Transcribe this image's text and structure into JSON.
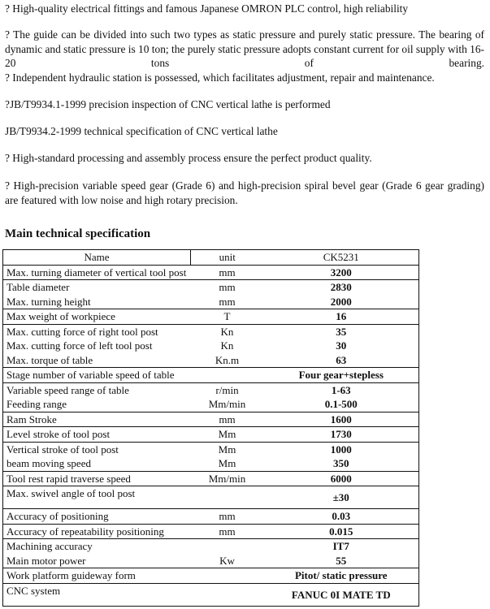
{
  "paragraphs": [
    "? High-quality electrical fittings and famous Japanese OMRON PLC control, high reliability",
    "? The guide can be divided into such two types as static pressure and purely static pressure. The bearing of dynamic and static pressure is 10 ton; the purely static pressure adopts constant current for oil supply with 16-20 tons of bearing.",
    "? Independent hydraulic station is possessed, which facilitates adjustment, repair and maintenance.",
    "?JB/T9934.1-1999 precision inspection of CNC vertical lathe is performed",
    "JB/T9934.2-1999 technical specification of CNC vertical lathe",
    "? High-standard processing and assembly process ensure the perfect product quality.",
    "? High-precision variable speed gear (Grade 6) and high-precision spiral bevel gear (Grade 6 gear grading) are featured with low noise and high rotary precision."
  ],
  "heading": "Main technical specification",
  "table": {
    "header": {
      "name": "Name",
      "unit": "unit",
      "value": "CK5231"
    },
    "groups": [
      [
        [
          "Max. turning diameter of vertical tool post",
          "mm",
          "3200"
        ]
      ],
      [
        [
          "Table diameter",
          "mm",
          "2830"
        ],
        [
          "Max. turning height",
          "mm",
          "2000"
        ]
      ],
      [
        [
          "Max weight of workpiece",
          "T",
          "16"
        ]
      ],
      [
        [
          "Max. cutting force of right tool post",
          "Kn",
          "35"
        ],
        [
          "Max. cutting force of left tool post",
          "Kn",
          "30"
        ],
        [
          "Max. torque of table",
          "Kn.m",
          "63"
        ]
      ],
      [
        [
          "Stage number of variable speed of table",
          "",
          "Four gear+stepless"
        ]
      ],
      [
        [
          "Variable speed range of table",
          "r/min",
          "1-63"
        ],
        [
          "Feeding range",
          "Mm/min",
          "0.1-500"
        ]
      ],
      [
        [
          "Ram Stroke",
          "mm",
          "1600"
        ]
      ],
      [
        [
          "Level stroke of tool post",
          "Mm",
          "1730"
        ]
      ],
      [
        [
          "Vertical stroke of tool post",
          "Mm",
          "1000"
        ],
        [
          "beam moving speed",
          "Mm",
          "350"
        ]
      ],
      [
        [
          "Tool rest rapid traverse speed",
          "Mm/min",
          "6000"
        ]
      ],
      [
        [
          "Max. swivel angle of tool post",
          "",
          "±30"
        ]
      ],
      [
        [
          "Accuracy of positioning",
          "mm",
          "0.03"
        ]
      ],
      [
        [
          "Accuracy of repeatability positioning",
          "mm",
          "0.015"
        ]
      ],
      [
        [
          "Machining accuracy",
          "",
          "IT7"
        ],
        [
          "Main motor power",
          "Kw",
          "55"
        ]
      ],
      [
        [
          "Work platform guideway form",
          "",
          "Pitot/ static pressure"
        ]
      ],
      [
        [
          "CNC system",
          "",
          "FANUC 0I MATE TD"
        ]
      ]
    ]
  }
}
